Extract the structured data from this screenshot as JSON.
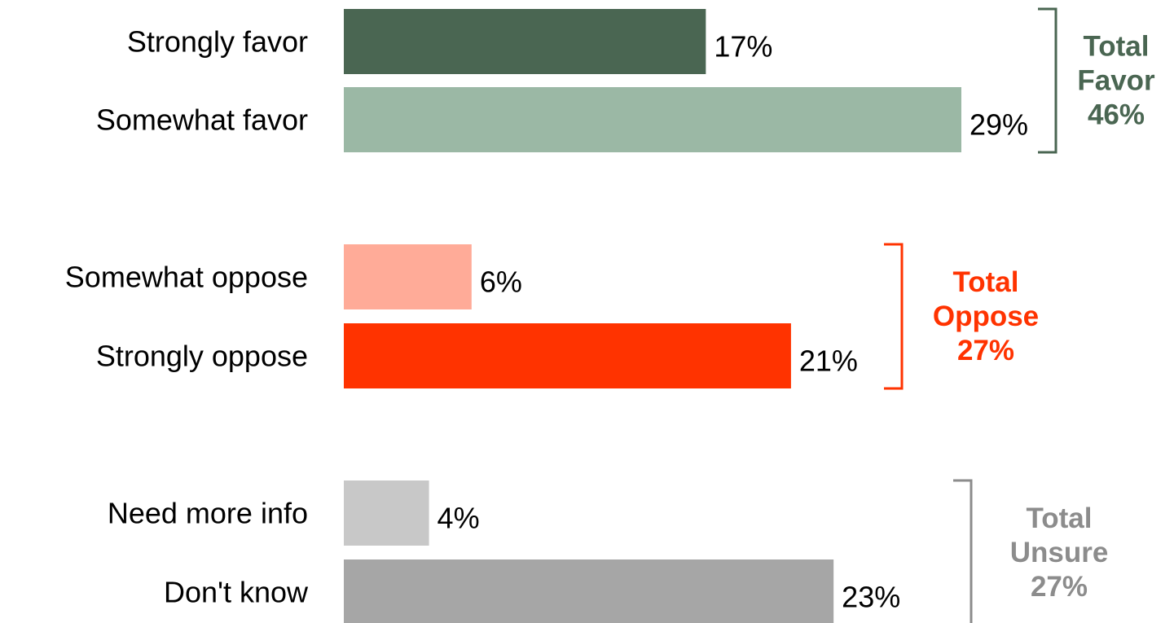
{
  "chart_data": {
    "type": "bar",
    "orientation": "horizontal",
    "unit": "%",
    "xlim": [
      0,
      29
    ],
    "grid": false,
    "bars": [
      {
        "category": "Strongly favor",
        "value": 17,
        "label": "17%",
        "color": "#4a6652"
      },
      {
        "category": "Somewhat favor",
        "value": 29,
        "label": "29%",
        "color": "#9bb8a5"
      },
      {
        "category": "Somewhat oppose",
        "value": 6,
        "label": "6%",
        "color": "#ffab98"
      },
      {
        "category": "Strongly oppose",
        "value": 21,
        "label": "21%",
        "color": "#ff3300"
      },
      {
        "category": "Need more info",
        "value": 4,
        "label": "4%",
        "color": "#c8c8c8"
      },
      {
        "category": "Don't know",
        "value": 23,
        "label": "23%",
        "color": "#a6a6a6"
      }
    ],
    "groups": [
      {
        "lines": [
          "Total",
          "Favor",
          "46%"
        ],
        "value": 46,
        "members": [
          0,
          1
        ],
        "color": "#4a6652"
      },
      {
        "lines": [
          "Total",
          "Oppose",
          "27%"
        ],
        "value": 27,
        "members": [
          2,
          3
        ],
        "color": "#ff3300"
      },
      {
        "lines": [
          "Total",
          "Unsure",
          "27%"
        ],
        "value": 27,
        "members": [
          4,
          5
        ],
        "color": "#8c8c8c"
      }
    ]
  }
}
